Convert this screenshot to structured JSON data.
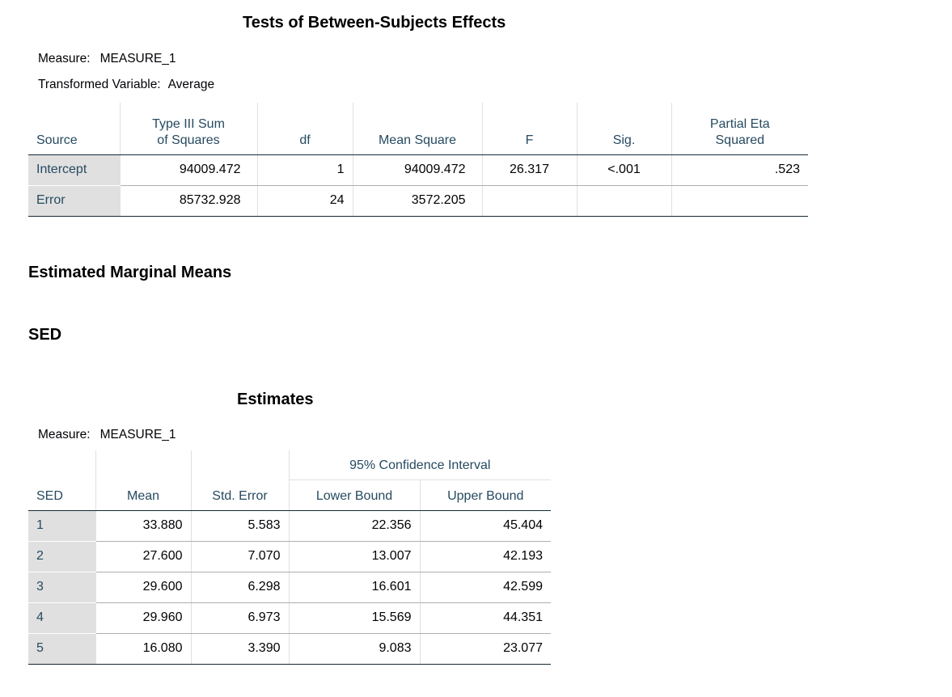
{
  "tbse": {
    "title": "Tests of Between-Subjects Effects",
    "measure_label": "Measure:",
    "measure_value": "MEASURE_1",
    "transformed_label": "Transformed Variable:",
    "transformed_value": "Average",
    "headers": {
      "source": "Source",
      "ss_line1": "Type III Sum",
      "ss_line2": "of Squares",
      "df": "df",
      "ms": "Mean Square",
      "f": "F",
      "sig": "Sig.",
      "eta_line1": "Partial Eta",
      "eta_line2": "Squared"
    },
    "rows": [
      {
        "source": "Intercept",
        "ss": "94009.472",
        "df": "1",
        "ms": "94009.472",
        "f": "26.317",
        "sig": "<.001",
        "eta": ".523"
      },
      {
        "source": "Error",
        "ss": "85732.928",
        "df": "24",
        "ms": "3572.205",
        "f": "",
        "sig": "",
        "eta": ""
      }
    ]
  },
  "emm": {
    "heading": "Estimated Marginal Means",
    "factor_heading": "SED"
  },
  "estimates": {
    "title": "Estimates",
    "measure_label": "Measure:",
    "measure_value": "MEASURE_1",
    "headers": {
      "sed": "SED",
      "mean": "Mean",
      "se": "Std. Error",
      "ci": "95% Confidence Interval",
      "lower": "Lower Bound",
      "upper": "Upper Bound"
    },
    "rows": [
      {
        "sed": "1",
        "mean": "33.880",
        "se": "5.583",
        "lower": "22.356",
        "upper": "45.404"
      },
      {
        "sed": "2",
        "mean": "27.600",
        "se": "7.070",
        "lower": "13.007",
        "upper": "42.193"
      },
      {
        "sed": "3",
        "mean": "29.600",
        "se": "6.298",
        "lower": "16.601",
        "upper": "42.599"
      },
      {
        "sed": "4",
        "mean": "29.960",
        "se": "6.973",
        "lower": "15.569",
        "upper": "44.351"
      },
      {
        "sed": "5",
        "mean": "16.080",
        "se": "3.390",
        "lower": "9.083",
        "upper": "23.077"
      }
    ]
  }
}
